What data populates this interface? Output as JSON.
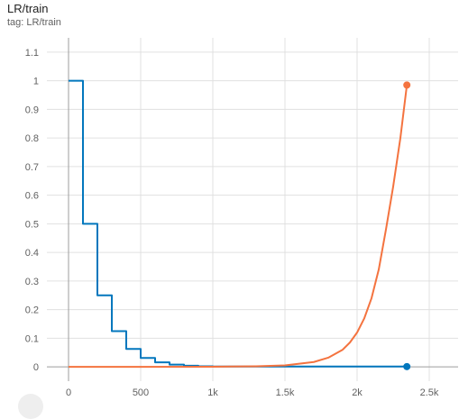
{
  "header": {
    "title": "LR/train",
    "subtitle": "tag: LR/train"
  },
  "colors": {
    "blue_series": "#0277bd",
    "orange_series": "#f4733f",
    "grid": "#e0e0e0",
    "axis": "#9e9e9e"
  },
  "chart_data": {
    "type": "line",
    "title": "LR/train",
    "subtitle": "tag: LR/train",
    "xlabel": "",
    "ylabel": "",
    "xlim": [
      -150,
      2700
    ],
    "ylim": [
      -0.05,
      1.15
    ],
    "x_ticks": [
      0,
      500,
      1000,
      1500,
      2000,
      2500
    ],
    "x_tick_labels": [
      "0",
      "500",
      "1k",
      "1.5k",
      "2k",
      "2.5k"
    ],
    "y_ticks": [
      0,
      0.1,
      0.2,
      0.3,
      0.4,
      0.5,
      0.6,
      0.7,
      0.8,
      0.9,
      1,
      1.1
    ],
    "y_tick_labels": [
      "0",
      "0.1",
      "0.2",
      "0.3",
      "0.4",
      "0.5",
      "0.6",
      "0.7",
      "0.8",
      "0.9",
      "1",
      "1.1"
    ],
    "grid": true,
    "series": [
      {
        "color": "#0277bd",
        "x": [
          0,
          100,
          100,
          200,
          200,
          300,
          300,
          400,
          400,
          500,
          500,
          600,
          600,
          700,
          700,
          800,
          800,
          900,
          900,
          1000,
          1000,
          2345
        ],
        "y": [
          1,
          1,
          0.5,
          0.5,
          0.25,
          0.25,
          0.125,
          0.125,
          0.0625,
          0.0625,
          0.03125,
          0.03125,
          0.015625,
          0.015625,
          0.0078125,
          0.0078125,
          0.00390625,
          0.00390625,
          0.001953125,
          0.001953125,
          0.0009765625,
          0.0009765625
        ],
        "end_marker": true
      },
      {
        "color": "#f4733f",
        "x": [
          0,
          500,
          1000,
          1300,
          1500,
          1700,
          1800,
          1900,
          1950,
          2000,
          2050,
          2100,
          2150,
          2200,
          2250,
          2300,
          2345
        ],
        "y": [
          0,
          0,
          0.0005,
          0.002,
          0.005,
          0.017,
          0.032,
          0.06,
          0.085,
          0.12,
          0.17,
          0.24,
          0.34,
          0.48,
          0.63,
          0.8,
          0.985
        ],
        "end_marker": true
      }
    ]
  }
}
